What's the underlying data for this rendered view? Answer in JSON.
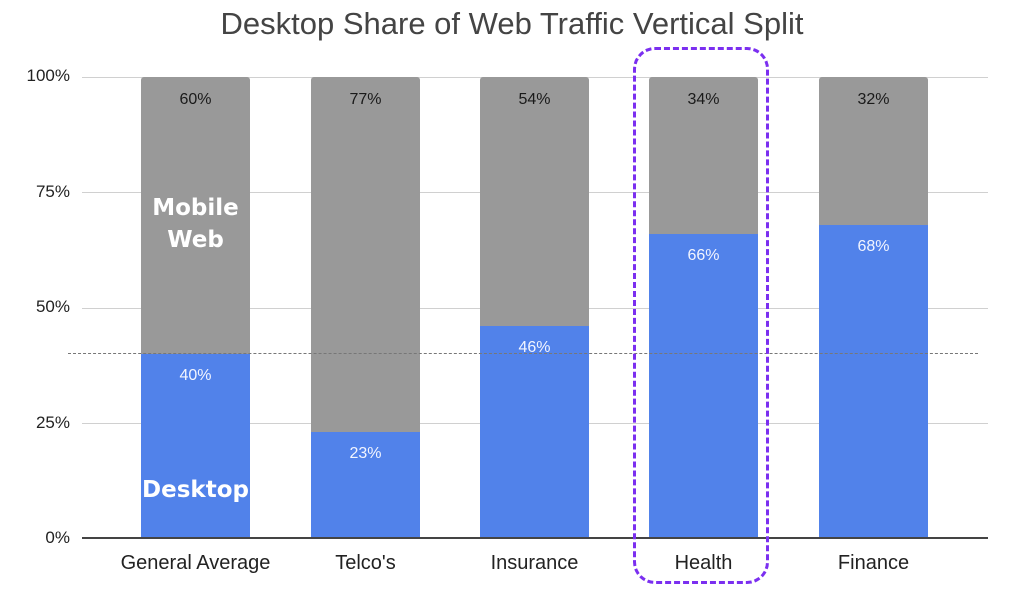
{
  "chart_data": {
    "type": "bar",
    "stacked": true,
    "title": "Desktop Share of Web Traffic Vertical Split",
    "xlabel": "",
    "ylabel": "",
    "ylim": [
      0,
      100
    ],
    "yticks": [
      "0%",
      "25%",
      "50%",
      "75%",
      "100%"
    ],
    "categories": [
      "General Average",
      "Telco's",
      "Insurance",
      "Health",
      "Finance"
    ],
    "series": [
      {
        "name": "Desktop",
        "color": "#5182ea",
        "values": [
          40,
          23,
          46,
          66,
          68
        ]
      },
      {
        "name": "Mobile Web",
        "color": "#999999",
        "values": [
          60,
          77,
          54,
          34,
          32
        ]
      }
    ],
    "annotations": {
      "reference_line": {
        "value": 40,
        "style": "dashed",
        "color": "#777777"
      },
      "highlighted_category": "Health",
      "highlight_color": "#7b2ff0",
      "inline_series_labels": {
        "mobile": "Mobile Web",
        "desktop": "Desktop"
      }
    },
    "grid": true,
    "legend": "inline labels on first bar"
  },
  "labels": {
    "title": "Desktop Share of Web Traffic Vertical Split",
    "yticks": [
      "100%",
      "75%",
      "50%",
      "25%",
      "0%"
    ],
    "mobile_line1": "Mobile",
    "mobile_line2": "Web",
    "desktop": "Desktop",
    "bars": [
      {
        "category": "General Average",
        "mobile": "60%",
        "desktop": "40%"
      },
      {
        "category": "Telco's",
        "mobile": "77%",
        "desktop": "23%"
      },
      {
        "category": "Insurance",
        "mobile": "54%",
        "desktop": "46%"
      },
      {
        "category": "Health",
        "mobile": "34%",
        "desktop": "66%"
      },
      {
        "category": "Finance",
        "mobile": "32%",
        "desktop": "68%"
      }
    ]
  }
}
